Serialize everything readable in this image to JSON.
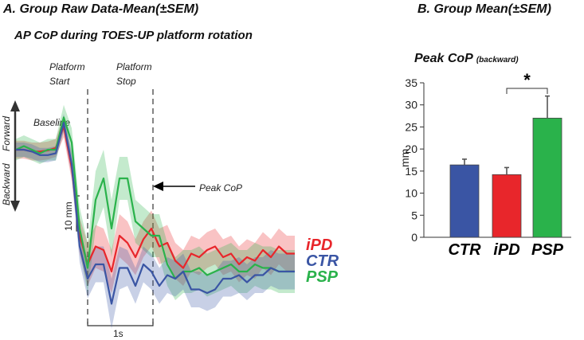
{
  "panel_a": {
    "title": "A. Group Raw Data-Mean(±SEM)",
    "subtitle": "AP CoP during TOES-UP platform rotation",
    "labels": {
      "platform_start": [
        "Platform",
        "Start"
      ],
      "platform_stop": [
        "Platform",
        "Stop"
      ],
      "baseline": "Baseline",
      "forward": "Forward",
      "backward": "Backward",
      "peak_cop": "Peak CoP",
      "scale_bar": "10 mm",
      "time_bar": "1s"
    }
  },
  "panel_b": {
    "title": "B. Group Mean(±SEM)",
    "subtitle": "Peak CoP",
    "subtitle_suffix": "(backward)",
    "significance": "*"
  },
  "colors": {
    "CTR": "#3a55a4",
    "iPD": "#e8262b",
    "PSP": "#2ab24b"
  },
  "chart_data": [
    {
      "type": "line",
      "title": "AP CoP during TOES-UP platform rotation",
      "xlabel": "Time (scale bar 1s)",
      "ylabel": "AP CoP (scale bar 10 mm; up = Forward, down = Backward)",
      "x": [
        0,
        0.1,
        0.2,
        0.3,
        0.4,
        0.5,
        0.6,
        0.7,
        0.8,
        0.9,
        1.0,
        1.1,
        1.2,
        1.3,
        1.4,
        1.5,
        1.6,
        1.7,
        1.8,
        1.9,
        2.0,
        2.1,
        2.2,
        2.3,
        2.4,
        2.5,
        2.6,
        2.7,
        2.8,
        2.9,
        3.0,
        3.1,
        3.2,
        3.3,
        3.4,
        3.5
      ],
      "series": [
        {
          "name": "iPD",
          "values": [
            0,
            0,
            -0.5,
            -0.5,
            -0.2,
            0.5,
            6.5,
            -5,
            -24,
            -32,
            -27,
            -28,
            -34,
            -24,
            -26,
            -30,
            -25,
            -22,
            -27,
            -26,
            -31,
            -33,
            -29,
            -30,
            -28,
            -27,
            -30,
            -29,
            -32,
            -30,
            -31,
            -28,
            -30,
            -27,
            -29,
            -29
          ],
          "sem": [
            2.5,
            2.5,
            2.5,
            2.5,
            2.5,
            2.5,
            3,
            3.5,
            5,
            6,
            6,
            6,
            6,
            6,
            6,
            5,
            5,
            5,
            5,
            5,
            5,
            5,
            5,
            5,
            5,
            5,
            5,
            5,
            5,
            5,
            5,
            5,
            5,
            5,
            5,
            5
          ]
        },
        {
          "name": "CTR",
          "values": [
            0,
            0,
            -0.5,
            -1.5,
            -1.5,
            -1,
            7.5,
            -4,
            -27,
            -36,
            -32,
            -32,
            -43,
            -33,
            -33,
            -38,
            -32,
            -34,
            -38,
            -35,
            -36,
            -34,
            -39,
            -39,
            -40,
            -39,
            -36,
            -36,
            -35,
            -37,
            -35,
            -35,
            -33,
            -34,
            -34,
            -34
          ],
          "sem": [
            2,
            2,
            2,
            2,
            2,
            2,
            2.5,
            3.5,
            4.5,
            5.5,
            5,
            5,
            7,
            6,
            5,
            5,
            5,
            5,
            5,
            5,
            5,
            5,
            5,
            5,
            5,
            5,
            5,
            5,
            5,
            5,
            5,
            5,
            5,
            5,
            5,
            5
          ]
        },
        {
          "name": "PSP",
          "values": [
            0,
            1,
            0,
            -1,
            0,
            0,
            9,
            2,
            -22,
            -33,
            -14,
            -8,
            -22,
            -8,
            -8,
            -20,
            -22,
            -24,
            -24,
            -32,
            -36,
            -34,
            -34,
            -33,
            -35,
            -34,
            -33,
            -32,
            -34,
            -34,
            -32,
            -33,
            -33,
            -34,
            -34,
            -34
          ],
          "sem": [
            3,
            3,
            3,
            3,
            3,
            3,
            3.5,
            4,
            6,
            7,
            8,
            8,
            8,
            6,
            6,
            6,
            6,
            6,
            6,
            6,
            6,
            6,
            6,
            6,
            6,
            6,
            6,
            6,
            6,
            6,
            6,
            6,
            6,
            6,
            6,
            6
          ]
        }
      ],
      "legend": [
        "iPD",
        "CTR",
        "PSP"
      ],
      "markers": {
        "platform_start": 0.95,
        "platform_stop": 1.7,
        "peak_cop": 1.5
      }
    },
    {
      "type": "bar",
      "title": "Peak CoP (backward)",
      "categories": [
        "CTR",
        "iPD",
        "PSP"
      ],
      "values": [
        16.4,
        14.2,
        27.0
      ],
      "errors": [
        1.3,
        1.6,
        5.0
      ],
      "ylabel": "mm",
      "ylim": [
        0,
        35
      ],
      "yticks": [
        0,
        5,
        10,
        15,
        20,
        25,
        30,
        35
      ],
      "significance": {
        "between": [
          "iPD",
          "PSP"
        ],
        "label": "*"
      }
    }
  ]
}
